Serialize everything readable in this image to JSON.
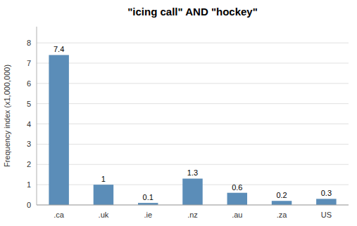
{
  "chart_data": {
    "type": "bar",
    "title": "\"icing call\" AND \"hockey\"",
    "categories": [
      ".ca",
      ".uk",
      ".ie",
      ".nz",
      ".au",
      ".za",
      "US"
    ],
    "values": [
      7.4,
      1,
      0.1,
      1.3,
      0.6,
      0.2,
      0.3
    ],
    "color": "#5b8db8",
    "ylabel": "Frequency index (x1,000,000)",
    "ylim": [
      0,
      8.8
    ],
    "yticks": [
      0,
      1,
      2,
      3,
      4,
      5,
      6,
      7,
      8
    ],
    "grid": true,
    "data_labels": true
  }
}
